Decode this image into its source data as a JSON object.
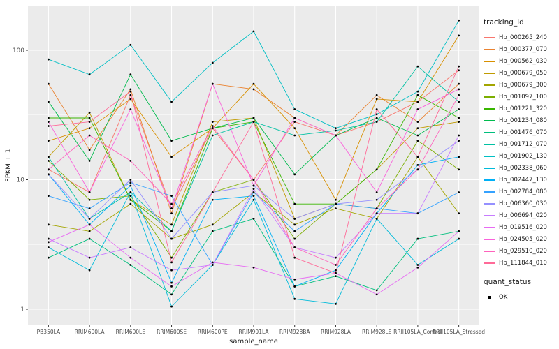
{
  "figure": {
    "background": "#FFFFFF",
    "panel_background": "#EBEBEB",
    "gridline_color": "#FFFFFF",
    "tick_color": "#333333",
    "tick_label_color": "#4D4D4D",
    "text_color": "#1A1A1A"
  },
  "chart_data": {
    "type": "line",
    "title": "",
    "xlabel": "sample_name",
    "ylabel": "FPKM + 1",
    "y_scale": "log10",
    "y_ticks": [
      1,
      10,
      100
    ],
    "y_tick_labels": [
      "1",
      "10",
      "100"
    ],
    "y_minor_gridlines": [
      3.162,
      31.623
    ],
    "ylim": [
      0.75,
      220
    ],
    "grid": true,
    "legend_position": "right",
    "legend_title": "tracking_id",
    "point_color": "#000000",
    "point_shape": "filled-circle",
    "categories": [
      "PB350LA",
      "RRIM600LA",
      "RRIM600LE",
      "RRIM600SE",
      "RRIM600PE",
      "RRIM901LA",
      "RRIM928BA",
      "RRIM928LA",
      "RRIM928LE",
      "RRII105LA_Control",
      "RRII105LA_Stressed"
    ],
    "series": [
      {
        "name": "Hb_000265_240",
        "color": "#F8766D",
        "values": [
          12,
          8,
          45,
          6,
          25,
          10,
          28,
          22,
          28,
          40,
          70
        ]
      },
      {
        "name": "Hb_000377_070",
        "color": "#EA8331",
        "values": [
          55,
          17,
          50,
          5.5,
          55,
          50,
          30,
          22,
          45,
          28,
          55
        ]
      },
      {
        "name": "Hb_000562_030",
        "color": "#D89000",
        "values": [
          20,
          25,
          42,
          15,
          25,
          55,
          25,
          7,
          42,
          40,
          130
        ]
      },
      {
        "name": "Hb_000679_050",
        "color": "#C09B00",
        "values": [
          15,
          33,
          7,
          4.5,
          28,
          30,
          5,
          6.5,
          12,
          25,
          28
        ]
      },
      {
        "name": "Hb_000679_300",
        "color": "#A3A500",
        "values": [
          4.5,
          4,
          6.5,
          3.5,
          4.5,
          8,
          4.5,
          6,
          5,
          15,
          5.5
        ]
      },
      {
        "name": "Hb_001097_100",
        "color": "#7CAE00",
        "values": [
          14,
          7,
          7.5,
          2.5,
          8,
          10,
          3.5,
          6.5,
          6,
          20,
          12
        ]
      },
      {
        "name": "Hb_001221_320",
        "color": "#39B600",
        "values": [
          30,
          30,
          7,
          4,
          25,
          28,
          6.5,
          6.5,
          12,
          45,
          30
        ]
      },
      {
        "name": "Hb_001234_080",
        "color": "#00BB4E",
        "values": [
          40,
          14,
          65,
          20,
          25,
          30,
          11,
          22,
          30,
          22,
          35
        ]
      },
      {
        "name": "Hb_001476_070",
        "color": "#00BF7D",
        "values": [
          2.5,
          3.5,
          2.2,
          1.3,
          4,
          5,
          1.5,
          1.8,
          1.4,
          3.5,
          4
        ]
      },
      {
        "name": "Hb_001712_070",
        "color": "#00C1A3",
        "values": [
          15,
          5,
          8,
          4,
          22,
          28,
          22,
          24,
          28,
          75,
          40
        ]
      },
      {
        "name": "Hb_001902_130",
        "color": "#00BFC4",
        "values": [
          85,
          65,
          110,
          40,
          80,
          140,
          35,
          25,
          32,
          48,
          170
        ]
      },
      {
        "name": "Hb_002338_060",
        "color": "#00BBDA",
        "values": [
          3,
          2,
          8,
          1.05,
          2.2,
          7,
          1.2,
          1.1,
          5,
          2.2,
          3.5
        ]
      },
      {
        "name": "Hb_002447_130",
        "color": "#00B0F6",
        "values": [
          11,
          4.5,
          9,
          1.6,
          7,
          7.5,
          1.5,
          2,
          5.5,
          13,
          15
        ]
      },
      {
        "name": "Hb_002784_080",
        "color": "#35A2FF",
        "values": [
          7.5,
          6,
          9.5,
          7.5,
          2.2,
          8,
          4,
          6.5,
          6,
          5.5,
          8
        ]
      },
      {
        "name": "Hb_006360_030",
        "color": "#9590FF",
        "values": [
          11,
          5,
          10,
          3.5,
          8,
          9,
          5,
          6.5,
          7,
          12,
          20
        ]
      },
      {
        "name": "Hb_006694_020",
        "color": "#C77CFF",
        "values": [
          3.5,
          2.5,
          3,
          2,
          2.2,
          8.5,
          3,
          2.5,
          5.5,
          5.5,
          22
        ]
      },
      {
        "name": "Hb_019516_020",
        "color": "#E76BF3",
        "values": [
          3.3,
          4.5,
          2.5,
          1.5,
          2.3,
          2.1,
          1.7,
          1.9,
          1.3,
          2.1,
          4
        ]
      },
      {
        "name": "Hb_024505_020",
        "color": "#FA62DB",
        "values": [
          28,
          8,
          35,
          6,
          55,
          9,
          30,
          22,
          8,
          35,
          50
        ]
      },
      {
        "name": "Hb_029510_020",
        "color": "#FF62BC",
        "values": [
          12,
          22,
          14,
          6.5,
          26,
          10,
          3,
          2.2,
          6,
          12,
          45
        ]
      },
      {
        "name": "Hb_111844_010",
        "color": "#FF6A98",
        "values": [
          26,
          28,
          48,
          2.3,
          8,
          28,
          2.5,
          1.9,
          35,
          15,
          75
        ]
      }
    ],
    "quant_status": {
      "title": "quant_status",
      "entries": [
        {
          "label": "OK",
          "shape": "filled-square-point",
          "color": "#000000"
        }
      ]
    }
  }
}
